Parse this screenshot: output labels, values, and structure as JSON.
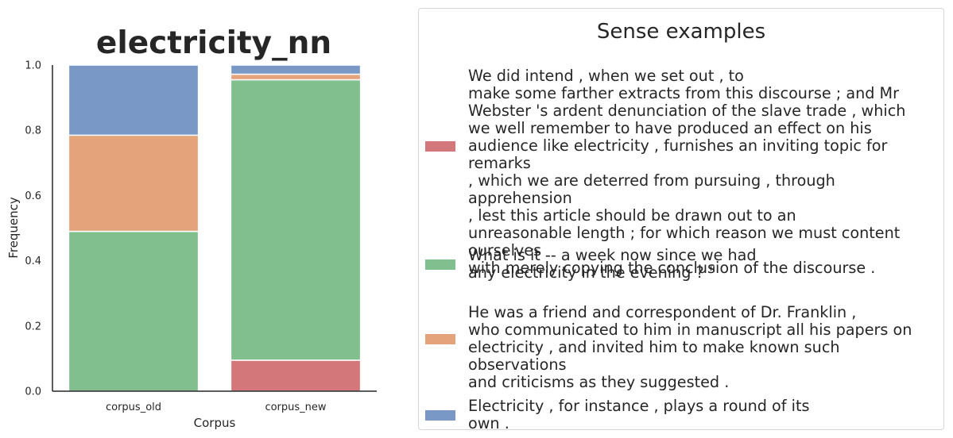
{
  "chart_data": {
    "type": "bar",
    "stacked": true,
    "title": "electricity_nn",
    "xlabel": "Corpus",
    "ylabel": "Frequency",
    "ylim": [
      0,
      1
    ],
    "yticks": [
      "0.0",
      "0.2",
      "0.4",
      "0.6",
      "0.8",
      "1.0"
    ],
    "categories": [
      "corpus_old",
      "corpus_new"
    ],
    "series": [
      {
        "color": "#d3777a",
        "values": [
          0.0,
          0.095
        ]
      },
      {
        "color": "#82bf8f",
        "values": [
          0.49,
          0.86
        ]
      },
      {
        "color": "#e5a37c",
        "values": [
          0.295,
          0.017
        ]
      },
      {
        "color": "#7a98c6",
        "values": [
          0.215,
          0.028
        ]
      }
    ],
    "legend": {
      "title": "Sense examples",
      "placement": "right",
      "entries": [
        {
          "color": "#d3777a",
          "text": "We did intend , when we set out , to\nmake some farther extracts from this discourse ; and Mr\nWebster 's ardent denunciation of the slave trade , which\nwe well remember to have produced an effect on his\naudience like electricity , furnishes an inviting topic for remarks\n, which we are deterred from pursuing , through apprehension\n, lest this article should be drawn out to an\nunreasonable length ; for which reason we must content ourselves\nwith merely copying the conclusion of the discourse ."
        },
        {
          "color": "#82bf8f",
          "text": "What is it -- a week now since we had\nany electricity in the evening ? \""
        },
        {
          "color": "#e5a37c",
          "text": "He was a friend and correspondent of Dr. Franklin ,\nwho communicated to him in manuscript all his papers on\nelectricity , and invited him to make known such observations\nand criticisms as they suggested ."
        },
        {
          "color": "#7a98c6",
          "text": "Electricity , for instance , plays a round of its\nown ."
        }
      ]
    }
  }
}
